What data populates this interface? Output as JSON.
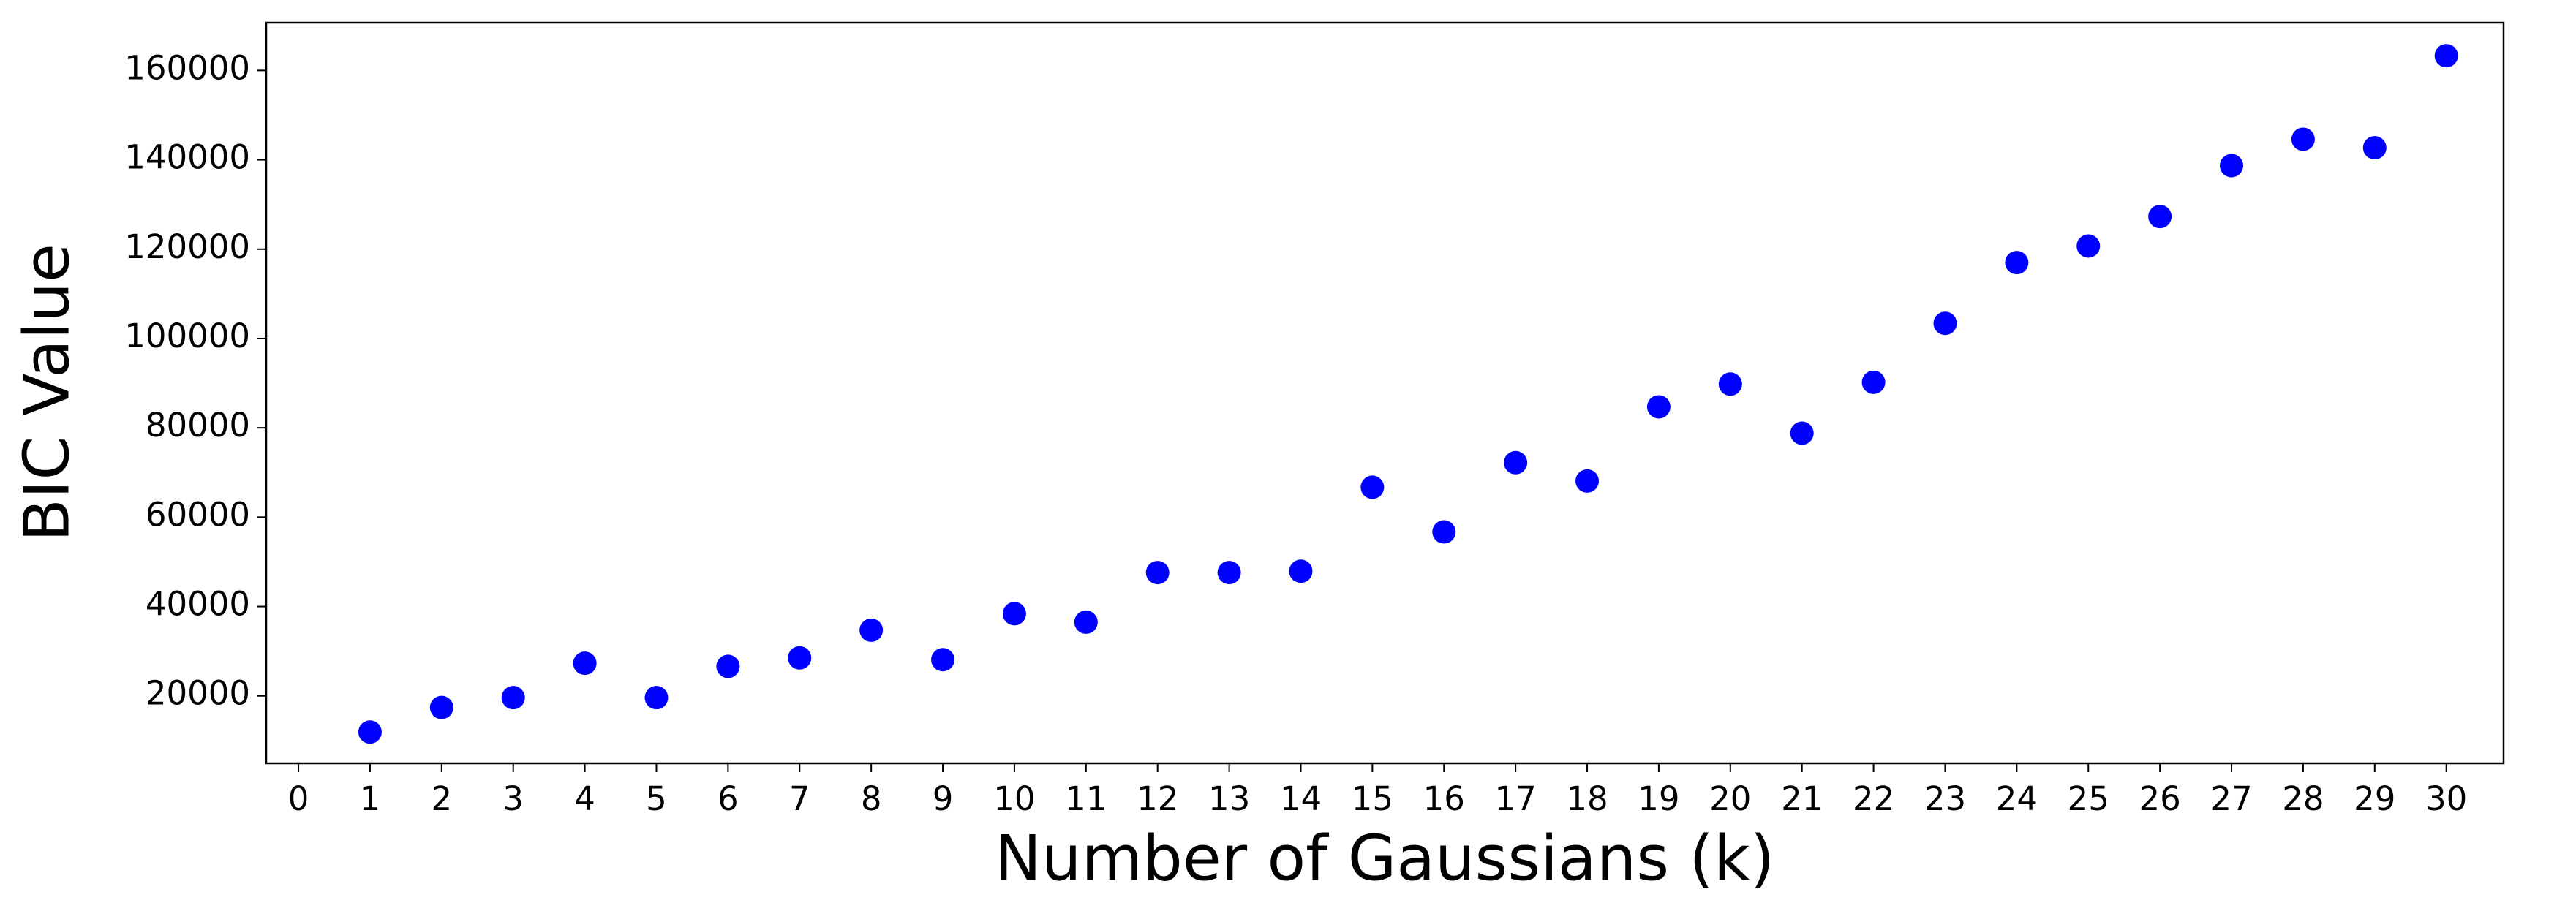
{
  "chart_data": {
    "type": "scatter",
    "x_label": "Number of Gaussians (k)",
    "y_label": "BIC Value",
    "color": "#0000ff",
    "x": [
      1,
      2,
      3,
      4,
      5,
      6,
      7,
      8,
      9,
      10,
      11,
      12,
      13,
      14,
      15,
      16,
      17,
      18,
      19,
      20,
      21,
      22,
      23,
      24,
      25,
      26,
      27,
      28,
      29,
      30
    ],
    "values": [
      11900,
      17400,
      19600,
      27300,
      19600,
      26600,
      28500,
      34700,
      28100,
      38400,
      36500,
      47600,
      47600,
      47900,
      66700,
      56700,
      72200,
      68100,
      84700,
      89800,
      78800,
      90200,
      103400,
      117000,
      120700,
      127300,
      138700,
      144600,
      142700,
      163300
    ],
    "xlim": [
      -0.45,
      30.8
    ],
    "xticks": [
      0,
      1,
      2,
      3,
      4,
      5,
      6,
      7,
      8,
      9,
      10,
      11,
      12,
      13,
      14,
      15,
      16,
      17,
      18,
      19,
      20,
      21,
      22,
      23,
      24,
      25,
      26,
      27,
      28,
      29,
      30
    ],
    "ylim": [
      4900,
      170700
    ],
    "yticks": [
      20000,
      40000,
      60000,
      80000,
      100000,
      120000,
      140000,
      160000
    ],
    "grid": false
  }
}
